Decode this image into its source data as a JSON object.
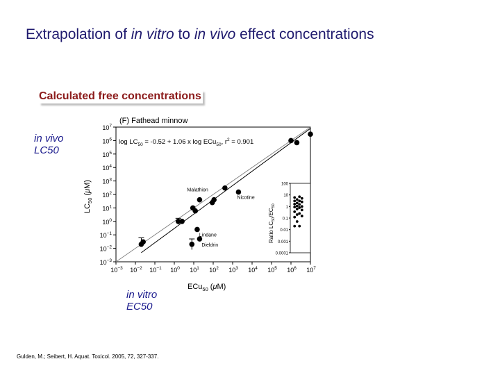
{
  "slide": {
    "title_pre": "Extrapolation of ",
    "title_it1": "in vitro",
    "title_mid": " to ",
    "title_it2": "in vivo",
    "title_post": " effect concentrations",
    "heading": "Calculated free concentrations",
    "annotation_y_line1": "in vivo",
    "annotation_y_line2": "LC50",
    "annotation_x_line1": "in vitro",
    "annotation_x_line2": "EC50",
    "citation": "Gulden, M.; Seibert, H. Aquat. Toxicol. 2005, 72, 327-337."
  },
  "chart_data": [
    {
      "type": "scatter",
      "panel_label": "(F) Fathead minnow",
      "regression_text": "log LC50 = -0.52 + 1.06 x log ECu50, r2 = 0.901",
      "xlabel": "ECu50 (μM)",
      "ylabel": "LC50 (μM)",
      "x_scale": "log",
      "y_scale": "log",
      "xlim": [
        0.001,
        10000000
      ],
      "ylim": [
        0.001,
        10000000
      ],
      "x_ticks": [
        "10-3",
        "10-2",
        "10-1",
        "100",
        "101",
        "102",
        "103",
        "104",
        "105",
        "106",
        "107"
      ],
      "y_ticks": [
        "10-3",
        "10-2",
        "10-1",
        "100",
        "101",
        "102",
        "103",
        "104",
        "105",
        "106",
        "107"
      ],
      "grid": false,
      "reference_lines": [
        {
          "kind": "identity",
          "style": "solid",
          "color": "#888888"
        },
        {
          "kind": "regression",
          "intercept": -0.52,
          "slope": 1.06,
          "style": "solid",
          "color": "#000000"
        }
      ],
      "points": [
        {
          "x": 0.02,
          "y": 0.02,
          "err": [
            0.013,
            0.06
          ]
        },
        {
          "x": 0.025,
          "y": 0.03
        },
        {
          "x": 1.6,
          "y": 1.0,
          "err": [
            0.6,
            1.7
          ]
        },
        {
          "x": 2.5,
          "y": 1.0
        },
        {
          "x": 8.0,
          "y": 0.02,
          "err": [
            0.008,
            0.05
          ]
        },
        {
          "x": 20,
          "y": 0.05,
          "label": "Dieldrin"
        },
        {
          "x": 9.0,
          "y": 10
        },
        {
          "x": 12,
          "y": 6.0
        },
        {
          "x": 15,
          "y": 0.25,
          "label": "Lindane"
        },
        {
          "x": 20,
          "y": 40,
          "label": "Malathion"
        },
        {
          "x": 90,
          "y": 25
        },
        {
          "x": 110,
          "y": 40
        },
        {
          "x": 400,
          "y": 300
        },
        {
          "x": 2000,
          "y": 150,
          "label": "Nicotine"
        },
        {
          "x": 1000000,
          "y": 1000000
        },
        {
          "x": 2000000,
          "y": 700000
        },
        {
          "x": 10000000,
          "y": 3000000
        }
      ]
    },
    {
      "type": "scatter",
      "ylabel": "Ratio LC50/EC50",
      "y_scale": "log",
      "ylim": [
        0.0001,
        100
      ],
      "y_ticks": [
        "100",
        "10",
        "1",
        "0.1",
        "0.01",
        "0.001",
        "0.0001"
      ],
      "columns": [
        [
          6.0,
          4.0,
          3.0,
          2.0,
          1.6,
          1.1,
          0.9,
          0.6,
          0.35,
          0.2,
          0.12,
          0.05,
          0.02
        ],
        [
          7.0,
          5.0,
          3.0,
          2.5,
          1.5,
          1.0,
          0.8,
          0.5,
          0.25,
          0.15,
          0.02
        ]
      ]
    }
  ]
}
